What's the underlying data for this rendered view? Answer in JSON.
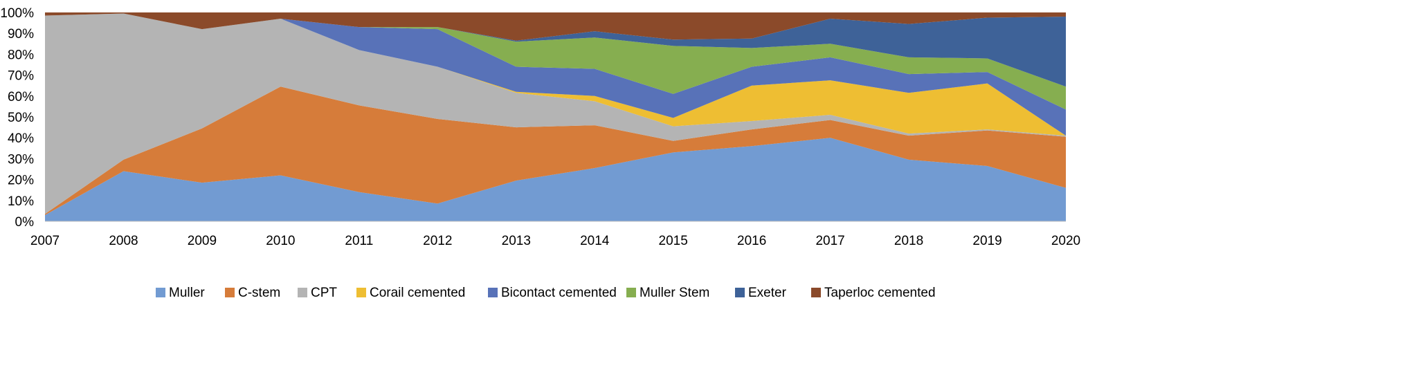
{
  "chart_data": {
    "type": "area",
    "stacked": "percent",
    "title": "",
    "xlabel": "",
    "ylabel": "",
    "ylim": [
      0,
      100
    ],
    "yticks": [
      "0%",
      "10%",
      "20%",
      "30%",
      "40%",
      "50%",
      "60%",
      "70%",
      "80%",
      "90%",
      "100%"
    ],
    "categories": [
      "2007",
      "2008",
      "2009",
      "2010",
      "2011",
      "2012",
      "2013",
      "2014",
      "2015",
      "2016",
      "2017",
      "2018",
      "2019",
      "2020"
    ],
    "legend_position": "bottom",
    "series": [
      {
        "name": "Muller",
        "color": "#729BD2",
        "values": [
          3,
          24,
          18.5,
          22,
          14,
          8.5,
          19.5,
          25.5,
          33,
          36,
          40,
          29.5,
          26.5,
          16
        ]
      },
      {
        "name": "C-stem",
        "color": "#D67C3A",
        "values": [
          0.5,
          5.5,
          26,
          42.5,
          41.5,
          40.5,
          25.5,
          20.5,
          5.5,
          8,
          8.5,
          11.5,
          17,
          24.5
        ]
      },
      {
        "name": "CPT",
        "color": "#B4B4B4",
        "values": [
          95,
          70,
          47.5,
          32.5,
          26.5,
          25,
          16.5,
          11.5,
          7,
          4,
          2.5,
          1,
          0.5,
          0.5
        ]
      },
      {
        "name": "Corail cemented",
        "color": "#EEBE33",
        "values": [
          0,
          0,
          0,
          0,
          0,
          0,
          0.5,
          2.5,
          4,
          17,
          16.5,
          19.5,
          22,
          0
        ]
      },
      {
        "name": "Bicontact cemented",
        "color": "#5872B8",
        "values": [
          0,
          0,
          0,
          0,
          11,
          18,
          12,
          13,
          11.5,
          9,
          11,
          9,
          5.5,
          12.5
        ]
      },
      {
        "name": "Muller Stem",
        "color": "#86AE50",
        "values": [
          0,
          0,
          0,
          0,
          0,
          1,
          12,
          15,
          23,
          9,
          6.5,
          8,
          6.5,
          11
        ]
      },
      {
        "name": "Exeter",
        "color": "#3E6298",
        "values": [
          0,
          0,
          0,
          0,
          0,
          0,
          0.5,
          3,
          3,
          4.5,
          12,
          16,
          19.5,
          33.5
        ]
      },
      {
        "name": "Taperloc cemented",
        "color": "#8B4A2A",
        "values": [
          1.5,
          0.5,
          8,
          3,
          7,
          7,
          13.5,
          9,
          13,
          12.5,
          3,
          5.5,
          2.5,
          2
        ]
      }
    ]
  }
}
